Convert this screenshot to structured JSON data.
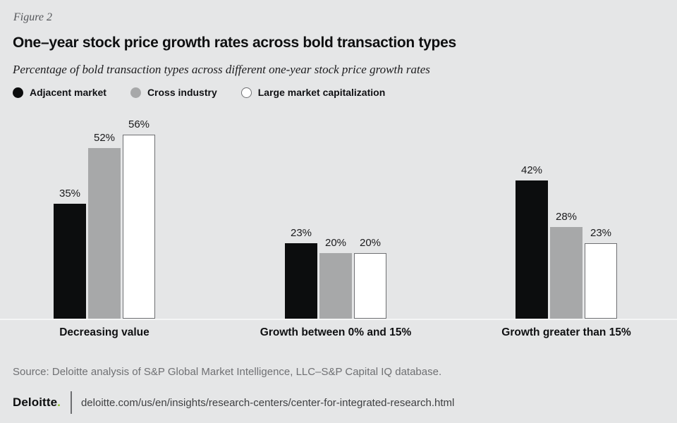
{
  "header": {
    "figure_label": "Figure 2",
    "title": "One–year stock price growth rates across bold transaction types",
    "subtitle": "Percentage of bold transaction types across different one-year stock price growth rates"
  },
  "chart_data": {
    "type": "bar",
    "categories": [
      "Decreasing value",
      "Growth between 0% and 15%",
      "Growth greater than 15%"
    ],
    "series": [
      {
        "name": "Adjacent market",
        "values": [
          35,
          23,
          42
        ],
        "color": "#0c0d0e"
      },
      {
        "name": "Cross industry",
        "values": [
          52,
          20,
          28
        ],
        "color": "#a7a8a9"
      },
      {
        "name": "Large market capitalization",
        "values": [
          56,
          20,
          23
        ],
        "color": "#ffffff",
        "border_color": "#6e6f72"
      }
    ],
    "value_suffix": "%",
    "ylim": [
      0,
      60
    ],
    "grid": false,
    "legend_position": "top",
    "xlabel": "",
    "ylabel": ""
  },
  "footer": {
    "source": "Source: Deloitte analysis of S&P Global Market Intelligence, LLC–S&P Capital IQ database.",
    "brand": "Deloitte",
    "brand_dot": ".",
    "url": "deloitte.com/us/en/insights/research-centers/center-for-integrated-research.html"
  },
  "colors": {
    "background": "#e5e6e7",
    "accent_green": "#86bc25",
    "bar_black": "#0c0d0e",
    "bar_gray": "#a7a8a9",
    "bar_white": "#ffffff",
    "baseline": "#f4f5f5"
  }
}
